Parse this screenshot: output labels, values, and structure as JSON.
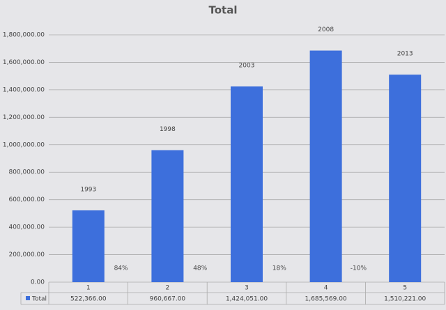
{
  "chart_data": {
    "type": "bar",
    "title": "Total",
    "categories": [
      "1",
      "2",
      "3",
      "4",
      "5"
    ],
    "series": [
      {
        "name": "Total",
        "color": "#3d6fdc",
        "values": [
          522366,
          960667,
          1424051,
          1685569,
          1510221
        ],
        "value_labels": [
          "522,366.00",
          "960,667.00",
          "1,424,051.00",
          "1,685,569.00",
          "1,510,221.00"
        ]
      }
    ],
    "bar_labels": [
      "1993",
      "1998",
      "2003",
      "2008",
      "2013"
    ],
    "growth_labels": [
      "84%",
      "48%",
      "18%",
      "-10%"
    ],
    "ylim": [
      0,
      1800000
    ],
    "yticks": [
      {
        "value": 0,
        "label": "0.00"
      },
      {
        "value": 200000,
        "label": "200,000.00"
      },
      {
        "value": 400000,
        "label": "400,000.00"
      },
      {
        "value": 600000,
        "label": "600,000.00"
      },
      {
        "value": 800000,
        "label": "800,000.00"
      },
      {
        "value": 1000000,
        "label": "1,000,000.00"
      },
      {
        "value": 1200000,
        "label": "1,200,000.00"
      },
      {
        "value": 1400000,
        "label": "1,400,000.00"
      },
      {
        "value": 1600000,
        "label": "1,600,000.00"
      },
      {
        "value": 1800000,
        "label": "1,800,000.00"
      }
    ],
    "grid": true
  }
}
